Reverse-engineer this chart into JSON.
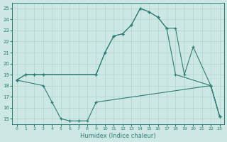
{
  "background_color": "#cde8e4",
  "grid_color": "#aed4cf",
  "line_color": "#2e7d74",
  "xlabel": "Humidex (Indice chaleur)",
  "xlim": [
    -0.5,
    23.5
  ],
  "ylim": [
    14.5,
    25.5
  ],
  "yticks": [
    15,
    16,
    17,
    18,
    19,
    20,
    21,
    22,
    23,
    24,
    25
  ],
  "xticks": [
    0,
    1,
    2,
    3,
    4,
    5,
    6,
    7,
    8,
    9,
    10,
    11,
    12,
    13,
    14,
    15,
    16,
    17,
    18,
    19,
    20,
    21,
    22,
    23
  ],
  "line1_x": [
    0,
    1,
    2,
    3,
    9,
    10,
    11,
    12,
    13,
    14,
    15,
    16,
    17,
    18,
    22,
    23
  ],
  "line1_y": [
    18.5,
    19.0,
    19.0,
    19.0,
    19.0,
    21.0,
    22.5,
    22.7,
    23.5,
    25.0,
    24.7,
    24.2,
    23.2,
    19.0,
    18.0,
    15.2
  ],
  "line2_x": [
    0,
    1,
    2,
    3,
    9,
    10,
    11,
    12,
    13,
    14,
    15,
    16,
    17,
    18,
    19,
    20,
    22,
    23
  ],
  "line2_y": [
    18.5,
    19.0,
    19.0,
    19.0,
    19.0,
    21.0,
    22.5,
    22.7,
    23.5,
    25.0,
    24.7,
    24.2,
    23.2,
    23.2,
    19.0,
    21.5,
    18.0,
    15.2
  ],
  "line3_x": [
    0,
    3,
    4,
    5,
    6,
    7,
    8,
    9,
    22,
    23
  ],
  "line3_y": [
    18.5,
    18.0,
    16.5,
    15.0,
    14.8,
    14.8,
    14.8,
    16.5,
    18.0,
    15.2
  ]
}
